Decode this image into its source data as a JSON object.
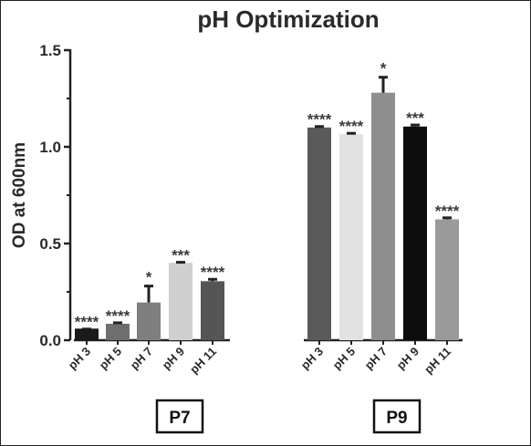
{
  "chart_data": {
    "type": "bar",
    "title": "pH Optimization",
    "ylabel": "OD at 600nm",
    "xlabel": "",
    "ylim": [
      0,
      1.5
    ],
    "yticks": [
      "0.0",
      "0.5",
      "1.0",
      "1.5"
    ],
    "grid": false,
    "legend": "none",
    "groups": [
      {
        "name": "P7",
        "bars": [
          {
            "label": "pH 3",
            "value": 0.06,
            "error": 0.0,
            "sig": "****",
            "color": "#1a1a1a"
          },
          {
            "label": "pH 5",
            "value": 0.085,
            "error": 0.005,
            "sig": "****",
            "color": "#6e6e6e"
          },
          {
            "label": "pH 7",
            "value": 0.195,
            "error": 0.085,
            "sig": "*",
            "color": "#7f7f7f"
          },
          {
            "label": "pH 9",
            "value": 0.4,
            "error": 0.003,
            "sig": "***",
            "color": "#cfcfcf"
          },
          {
            "label": "pH 11",
            "value": 0.305,
            "error": 0.01,
            "sig": "****",
            "color": "#555555"
          }
        ]
      },
      {
        "name": "P9",
        "bars": [
          {
            "label": "pH 3",
            "value": 1.1,
            "error": 0.005,
            "sig": "****",
            "color": "#5a5a5a"
          },
          {
            "label": "pH 5",
            "value": 1.065,
            "error": 0.005,
            "sig": "****",
            "color": "#e2e2e2"
          },
          {
            "label": "pH 7",
            "value": 1.28,
            "error": 0.08,
            "sig": "*",
            "color": "#8e8e8e"
          },
          {
            "label": "pH 9",
            "value": 1.105,
            "error": 0.008,
            "sig": "***",
            "color": "#0d0d0d"
          },
          {
            "label": "pH 11",
            "value": 0.625,
            "error": 0.008,
            "sig": "****",
            "color": "#9a9a9a"
          }
        ]
      }
    ]
  }
}
